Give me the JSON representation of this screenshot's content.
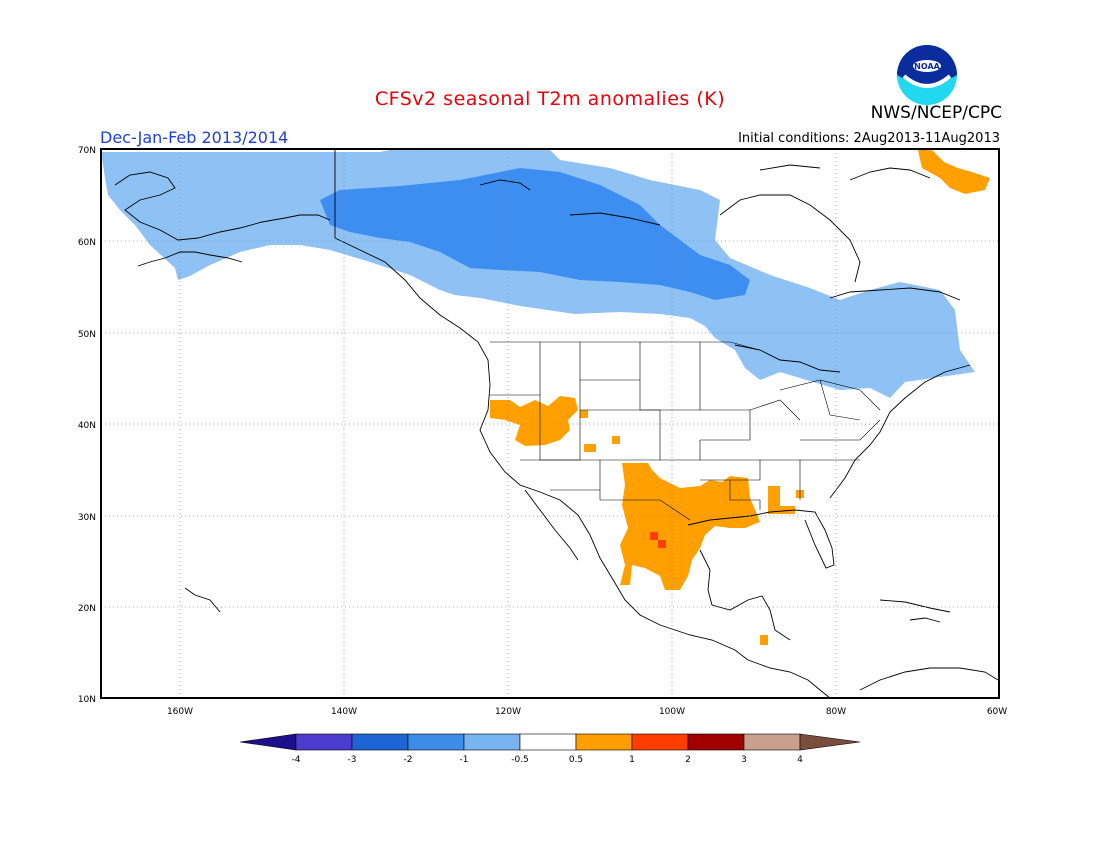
{
  "title": "CFSv2 seasonal T2m anomalies (K)",
  "period": "Dec-Jan-Feb 2013/2014",
  "initial_conditions": "Initial conditions: 2Aug2013-11Aug2013",
  "agency": "NWS/NCEP/CPC",
  "logo_text": "NOAA",
  "map": {
    "region": "North America",
    "lon_range": [
      -172,
      -60
    ],
    "lat_range": [
      10,
      70
    ],
    "lat_labels": [
      "70N",
      "60N",
      "50N",
      "40N",
      "30N",
      "20N",
      "10N"
    ],
    "lon_labels": [
      "160W",
      "140W",
      "120W",
      "100W",
      "80W",
      "60W"
    ],
    "grid": "dotted"
  },
  "colorbar": {
    "labels": [
      "-4",
      "-3",
      "-2",
      "-1",
      "-0.5",
      "0.5",
      "1",
      "2",
      "3",
      "4"
    ],
    "colors": [
      "#1e0f8c",
      "#4c3cce",
      "#1e64d4",
      "#3c8ce8",
      "#78b4f0",
      "#ffffff",
      "#ff9e00",
      "#ff3d00",
      "#a00000",
      "#c8a08c",
      "#7a4e3c"
    ]
  },
  "anomaly_colors": {
    "light_blue": "#8ec1f4",
    "mid_blue": "#3d8ef0",
    "orange": "#ffa000",
    "red": "#ff3d00"
  }
}
